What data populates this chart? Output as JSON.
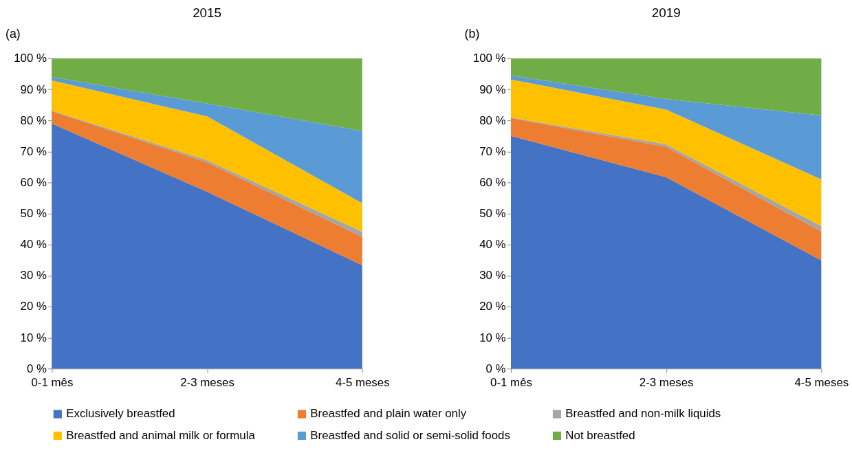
{
  "chart_data": [
    {
      "type": "area",
      "title": "2015",
      "annotations": [
        "(a)"
      ],
      "stacked": true,
      "legend": "bottom",
      "grid": false,
      "categories": [
        "0-1 mês",
        "2-3 meses",
        "4-5 meses"
      ],
      "ylim": [
        0,
        100
      ],
      "yticks": [
        {
          "value": 0,
          "label": "0 %"
        },
        {
          "value": 10,
          "label": "10 %"
        },
        {
          "value": 20,
          "label": "20 %"
        },
        {
          "value": 30,
          "label": "30 %"
        },
        {
          "value": 40,
          "label": "40 %"
        },
        {
          "value": 50,
          "label": "50 %"
        },
        {
          "value": 60,
          "label": "60 %"
        },
        {
          "value": 70,
          "label": "70 %"
        },
        {
          "value": 80,
          "label": "80 %"
        },
        {
          "value": 90,
          "label": "90 %"
        },
        {
          "value": 100,
          "label": "100 %"
        }
      ],
      "series": [
        {
          "name": "Exclusively breastfed",
          "color": "#4472c4",
          "values": [
            79,
            57,
            33.3
          ]
        },
        {
          "name": "Breastfed and plain water only",
          "color": "#ed7d31",
          "values": [
            4,
            9.5,
            9.2
          ]
        },
        {
          "name": "Breastfed and non-milk liquids",
          "color": "#a5a5a5",
          "values": [
            0.2,
            0.7,
            1.6
          ]
        },
        {
          "name": "Breastfed and animal milk or formula",
          "color": "#ffc000",
          "values": [
            9.7,
            14.1,
            9.2
          ]
        },
        {
          "name": "Breastfed and solid or semi-solid foods",
          "color": "#5b9bd5",
          "values": [
            1.1,
            4.2,
            23.3
          ]
        },
        {
          "name": "Not breastfed",
          "color": "#70ad47",
          "values": [
            6,
            14.5,
            23.4
          ]
        }
      ]
    },
    {
      "type": "area",
      "title": "2019",
      "annotations": [
        "(b)"
      ],
      "stacked": true,
      "legend": "bottom",
      "grid": false,
      "categories": [
        "0-1 mês",
        "2-3 meses",
        "4-5 meses"
      ],
      "ylim": [
        0,
        100
      ],
      "yticks": [
        {
          "value": 0,
          "label": "0 %"
        },
        {
          "value": 10,
          "label": "10 %"
        },
        {
          "value": 20,
          "label": "20 %"
        },
        {
          "value": 30,
          "label": "30 %"
        },
        {
          "value": 40,
          "label": "40 %"
        },
        {
          "value": 50,
          "label": "50 %"
        },
        {
          "value": 60,
          "label": "60 %"
        },
        {
          "value": 70,
          "label": "70 %"
        },
        {
          "value": 80,
          "label": "80 %"
        },
        {
          "value": 90,
          "label": "90 %"
        },
        {
          "value": 100,
          "label": "100 %"
        }
      ],
      "series": [
        {
          "name": "Exclusively breastfed",
          "color": "#4472c4",
          "values": [
            75,
            61.7,
            34.9
          ]
        },
        {
          "name": "Breastfed and plain water only",
          "color": "#ed7d31",
          "values": [
            5.8,
            9.8,
            9.3
          ]
        },
        {
          "name": "Breastfed and non-milk liquids",
          "color": "#a5a5a5",
          "values": [
            0.2,
            0.8,
            1.7
          ]
        },
        {
          "name": "Breastfed and animal milk or formula",
          "color": "#ffc000",
          "values": [
            12.2,
            11.2,
            15.1
          ]
        },
        {
          "name": "Breastfed and solid or semi-solid foods",
          "color": "#5b9bd5",
          "values": [
            1.3,
            3.4,
            20.6
          ]
        },
        {
          "name": "Not breastfed",
          "color": "#70ad47",
          "values": [
            5.5,
            13.1,
            18.4
          ]
        }
      ]
    }
  ]
}
